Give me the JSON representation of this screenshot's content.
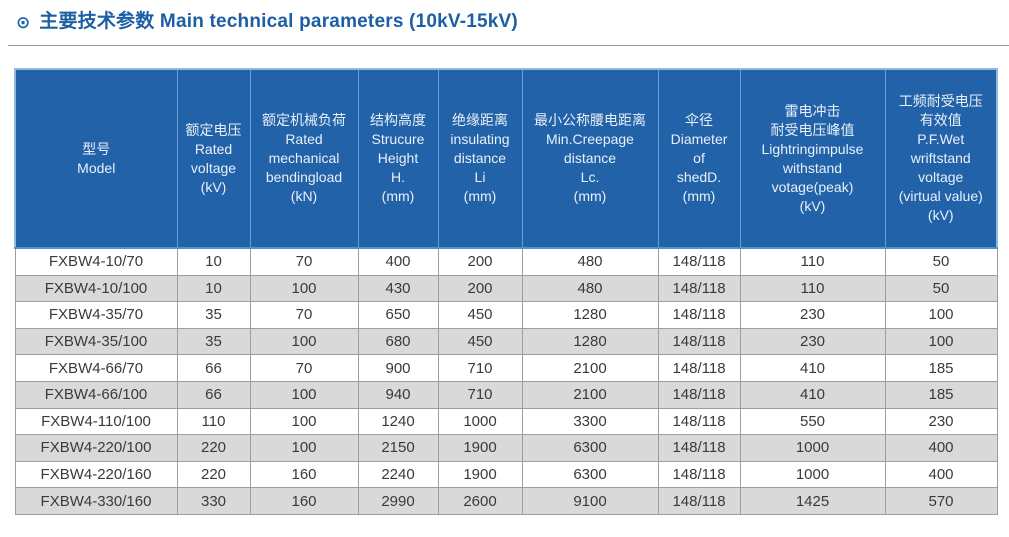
{
  "header": {
    "icon": "⊙",
    "title": "主要技术参数 Main technical parameters (10kV-15kV)"
  },
  "colors": {
    "title_blue": "#1d5fa5",
    "table_header_bg": "#2162a8",
    "header_divider_blue": "#4f94cf",
    "row_alt_gray": "#d9d9d9",
    "body_border_gray": "#9e9e9e"
  },
  "table": {
    "columns": [
      {
        "id": "model",
        "width": 162,
        "lines": [
          "型号",
          "Model"
        ]
      },
      {
        "id": "rated-voltage",
        "width": 73,
        "lines": [
          "额定电压",
          "Rated",
          "voltage",
          "(kV)"
        ]
      },
      {
        "id": "rated-mechanical-bendingload",
        "width": 108,
        "lines": [
          "额定机械负荷",
          "Rated",
          "mechanical",
          "bendingload",
          "(kN)"
        ]
      },
      {
        "id": "structure-height",
        "width": 80,
        "lines": [
          "结构高度",
          "Strucure",
          "Height",
          "H.",
          "(mm)"
        ]
      },
      {
        "id": "insulating-distance",
        "width": 84,
        "lines": [
          "绝缘距离",
          "insulating",
          "distance",
          "Li",
          "(mm)"
        ]
      },
      {
        "id": "min-creepage-distance",
        "width": 136,
        "lines": [
          "最小公称腰电距离",
          "Min.Creepage",
          "distance",
          "Lc.",
          "(mm)"
        ]
      },
      {
        "id": "shed-diameter",
        "width": 82,
        "lines": [
          "伞径",
          "Diameter",
          "of",
          "shedD.",
          "(mm)"
        ]
      },
      {
        "id": "lightning-impulse-withstand",
        "width": 145,
        "lines": [
          "雷电冲击",
          "耐受电压峰值",
          "Lightringimpulse",
          "withstand",
          "votage(peak)",
          "(kV)"
        ]
      },
      {
        "id": "power-frequency-withstand",
        "width": 112,
        "lines": [
          "工频耐受电压",
          "有效值",
          "P.F.Wet",
          "wriftstand",
          "voltage",
          "(virtual value)",
          "(kV)"
        ]
      }
    ],
    "rows": [
      [
        "FXBW4-10/70",
        "10",
        "70",
        "400",
        "200",
        "480",
        "148/118",
        "110",
        "50"
      ],
      [
        "FXBW4-10/100",
        "10",
        "100",
        "430",
        "200",
        "480",
        "148/118",
        "110",
        "50"
      ],
      [
        "FXBW4-35/70",
        "35",
        "70",
        "650",
        "450",
        "1280",
        "148/118",
        "230",
        "100"
      ],
      [
        "FXBW4-35/100",
        "35",
        "100",
        "680",
        "450",
        "1280",
        "148/118",
        "230",
        "100"
      ],
      [
        "FXBW4-66/70",
        "66",
        "70",
        "900",
        "710",
        "2100",
        "148/118",
        "410",
        "185"
      ],
      [
        "FXBW4-66/100",
        "66",
        "100",
        "940",
        "710",
        "2100",
        "148/118",
        "410",
        "185"
      ],
      [
        "FXBW4-110/100",
        "110",
        "100",
        "1240",
        "1000",
        "3300",
        "148/118",
        "550",
        "230"
      ],
      [
        "FXBW4-220/100",
        "220",
        "100",
        "2150",
        "1900",
        "6300",
        "148/118",
        "1000",
        "400"
      ],
      [
        "FXBW4-220/160",
        "220",
        "160",
        "2240",
        "1900",
        "6300",
        "148/118",
        "1000",
        "400"
      ],
      [
        "FXBW4-330/160",
        "330",
        "160",
        "2990",
        "2600",
        "9100",
        "148/118",
        "1425",
        "570"
      ]
    ]
  }
}
